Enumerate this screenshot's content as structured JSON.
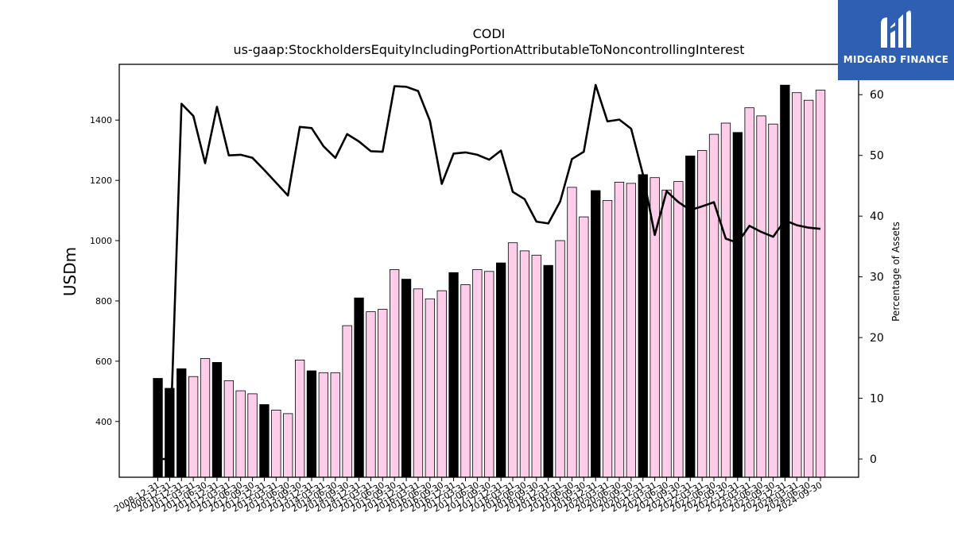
{
  "chart_data": {
    "type": "bar",
    "title": "CODI",
    "subtitle": "us-gaap:StockholdersEquityIncludingPortionAttributableToNoncontrollingInterest",
    "ylabel": "USDm",
    "y2label": "Percentage of Assets",
    "ylim": [
      215,
      1585
    ],
    "y2lim": [
      -3,
      65
    ],
    "yticks": [
      400,
      600,
      800,
      1000,
      1200,
      1400
    ],
    "y2ticks": [
      0,
      10,
      20,
      30,
      40,
      50,
      60
    ],
    "categories": [
      "2008-12-31",
      "2009-12-31",
      "2010-12-31",
      "2011-03-31",
      "2011-06-30",
      "2011-12-31",
      "2012-03-31",
      "2012-06-30",
      "2012-09-30",
      "2012-12-31",
      "2013-03-31",
      "2013-06-30",
      "2013-09-30",
      "2013-12-31",
      "2014-03-31",
      "2014-06-30",
      "2014-09-30",
      "2014-12-31",
      "2015-03-31",
      "2015-06-30",
      "2015-09-30",
      "2015-12-31",
      "2016-03-31",
      "2016-06-30",
      "2016-09-30",
      "2016-12-31",
      "2017-03-31",
      "2017-06-30",
      "2017-09-30",
      "2017-12-31",
      "2018-03-31",
      "2018-06-30",
      "2018-09-30",
      "2018-12-31",
      "2019-03-31",
      "2019-06-30",
      "2019-09-30",
      "2019-12-31",
      "2020-03-31",
      "2020-06-30",
      "2020-09-30",
      "2020-12-31",
      "2021-03-31",
      "2021-06-30",
      "2021-09-30",
      "2021-12-31",
      "2022-03-31",
      "2022-06-30",
      "2022-09-30",
      "2022-12-31",
      "2023-03-31",
      "2023-06-30",
      "2023-09-30",
      "2023-12-31",
      "2024-03-31",
      "2024-06-30",
      "2024-09-30"
    ],
    "series": [
      {
        "values": [
          543,
          510,
          575,
          549,
          609,
          596,
          535,
          502,
          492,
          456,
          438,
          426,
          604,
          568,
          562,
          562,
          718,
          810,
          764,
          772,
          904,
          872,
          840,
          807,
          834,
          894,
          854,
          904,
          898,
          926,
          993,
          966,
          952,
          918,
          1000,
          1177,
          1079,
          1166,
          1133,
          1194,
          1190,
          1219,
          1209,
          1168,
          1196,
          1281,
          1299,
          1353,
          1390,
          1359,
          1441,
          1414,
          1387,
          1516,
          1491,
          1466,
          1499
        ],
        "annual": [
          true,
          true,
          true,
          false,
          false,
          true,
          false,
          false,
          false,
          true,
          false,
          false,
          false,
          true,
          false,
          false,
          false,
          true,
          false,
          false,
          false,
          true,
          false,
          false,
          false,
          true,
          false,
          false,
          false,
          true,
          false,
          false,
          false,
          true,
          false,
          false,
          false,
          true,
          false,
          false,
          false,
          true,
          false,
          false,
          false,
          true,
          false,
          false,
          false,
          true,
          false,
          false,
          false,
          true,
          false,
          false,
          false
        ]
      },
      {
        "axis": "right",
        "values": [
          0,
          0,
          58.5,
          56.5,
          48.7,
          58.0,
          50.0,
          50.1,
          49.6,
          47.6,
          45.5,
          43.4,
          54.7,
          54.5,
          51.5,
          49.6,
          53.5,
          52.3,
          50.7,
          50.6,
          61.4,
          61.3,
          60.6,
          55.7,
          45.3,
          50.3,
          50.5,
          50.1,
          49.3,
          50.8,
          44.0,
          42.8,
          39.1,
          38.8,
          42.4,
          49.4,
          50.6,
          61.6,
          55.6,
          55.9,
          54.4,
          46.9,
          36.9,
          44.1,
          42.3,
          41.0,
          41.6,
          42.3,
          36.3,
          35.6,
          38.4,
          37.4,
          36.6,
          39.3,
          38.5,
          38.1,
          37.9
        ]
      }
    ],
    "colors": {
      "annual_bar": "#000000",
      "quarter_bar": "#ffccea",
      "bar_edge": "#000000",
      "line": "#000000"
    },
    "grid": false
  },
  "logo": {
    "brand": "MIDGARD FINANCE",
    "background": "#2f5fb3"
  }
}
